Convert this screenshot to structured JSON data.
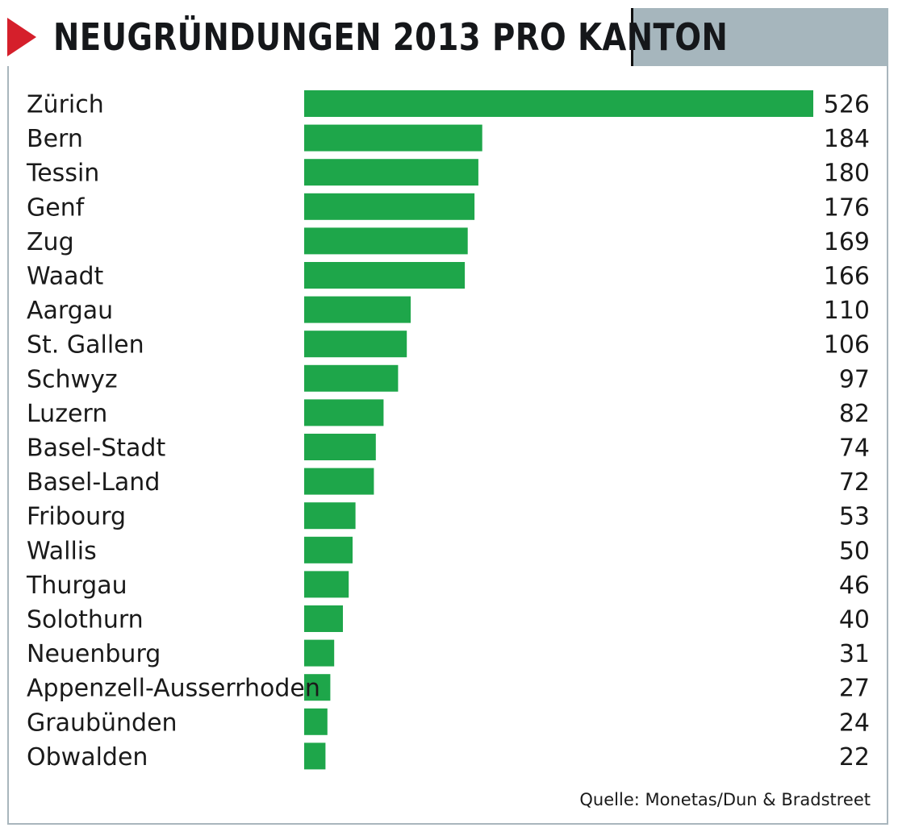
{
  "chart_data": {
    "type": "bar",
    "orientation": "horizontal",
    "title": "NEUGRÜNDUNGEN 2013 PRO KANTON",
    "categories": [
      "Zürich",
      "Bern",
      "Tessin",
      "Genf",
      "Zug",
      "Waadt",
      "Aargau",
      "St. Gallen",
      "Schwyz",
      "Luzern",
      "Basel-Stadt",
      "Basel-Land",
      "Fribourg",
      "Wallis",
      "Thurgau",
      "Solothurn",
      "Neuenburg",
      "Appenzell-Ausserrhoden",
      "Graubünden",
      "Obwalden"
    ],
    "values": [
      526,
      184,
      180,
      176,
      169,
      166,
      110,
      106,
      97,
      82,
      74,
      72,
      53,
      50,
      46,
      40,
      31,
      27,
      24,
      22
    ],
    "value_labels": [
      "526",
      "184",
      "180",
      "176",
      "169",
      "166",
      "110",
      "106",
      "97",
      "82",
      "74",
      "72",
      "53",
      "50",
      "46",
      "40",
      "31",
      "27",
      "24",
      "22"
    ],
    "xlabel": "",
    "ylabel": "",
    "grid": false,
    "legend": "none",
    "bar_color": "#1ea64a",
    "source": "Quelle: Monetas/Dun & Bradstreet"
  },
  "colors": {
    "header_band": "#a6b6bd",
    "frame_border": "#a9b6bd",
    "flag_red": "#d51f2b",
    "title_text": "#15171a"
  }
}
